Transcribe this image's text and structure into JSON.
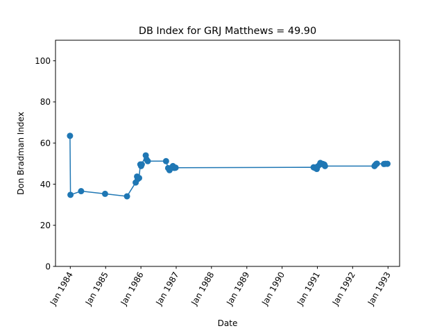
{
  "chart_data": {
    "type": "line",
    "title": "DB Index for GRJ Matthews = 49.90",
    "xlabel": "Date",
    "ylabel": "Don Bradman Index",
    "xlim": [
      "1983-08-01",
      "1993-05-01"
    ],
    "ylim": [
      0,
      110
    ],
    "xticks": [
      {
        "date": "1984-01-01",
        "label": "Jan 1984"
      },
      {
        "date": "1985-01-01",
        "label": "Jan 1985"
      },
      {
        "date": "1986-01-01",
        "label": "Jan 1986"
      },
      {
        "date": "1987-01-01",
        "label": "Jan 1987"
      },
      {
        "date": "1988-01-01",
        "label": "Jan 1988"
      },
      {
        "date": "1989-01-01",
        "label": "Jan 1989"
      },
      {
        "date": "1990-01-01",
        "label": "Jan 1990"
      },
      {
        "date": "1991-01-01",
        "label": "Jan 1991"
      },
      {
        "date": "1992-01-01",
        "label": "Jan 1992"
      },
      {
        "date": "1993-01-01",
        "label": "Jan 1993"
      }
    ],
    "yticks": [
      0,
      20,
      40,
      60,
      80,
      100
    ],
    "grid": false,
    "series": [
      {
        "color": "#1f77b4",
        "marker": "circle",
        "points": [
          {
            "x": "1983-12-29",
            "y": 63.5
          },
          {
            "x": "1984-01-03",
            "y": 34.8
          },
          {
            "x": "1984-04-22",
            "y": 36.6
          },
          {
            "x": "1984-12-26",
            "y": 35.3
          },
          {
            "x": "1985-08-10",
            "y": 34.1
          },
          {
            "x": "1985-11-08",
            "y": 40.8
          },
          {
            "x": "1985-11-22",
            "y": 43.7
          },
          {
            "x": "1985-11-29",
            "y": 42.5
          },
          {
            "x": "1985-12-13",
            "y": 43.0
          },
          {
            "x": "1985-12-26",
            "y": 49.6
          },
          {
            "x": "1986-01-03",
            "y": 48.8
          },
          {
            "x": "1986-01-10",
            "y": 49.6
          },
          {
            "x": "1986-02-20",
            "y": 54.0
          },
          {
            "x": "1986-03-01",
            "y": 52.0
          },
          {
            "x": "1986-03-13",
            "y": 51.2
          },
          {
            "x": "1986-09-18",
            "y": 51.2
          },
          {
            "x": "1986-10-10",
            "y": 47.8
          },
          {
            "x": "1986-10-24",
            "y": 46.8
          },
          {
            "x": "1986-11-14",
            "y": 48.0
          },
          {
            "x": "1986-11-28",
            "y": 48.8
          },
          {
            "x": "1986-12-12",
            "y": 47.9
          },
          {
            "x": "1986-12-26",
            "y": 48.0
          },
          {
            "x": "1990-11-23",
            "y": 48.2
          },
          {
            "x": "1990-12-07",
            "y": 47.9
          },
          {
            "x": "1990-12-26",
            "y": 47.4
          },
          {
            "x": "1991-01-04",
            "y": 48.6
          },
          {
            "x": "1991-01-25",
            "y": 49.5
          },
          {
            "x": "1991-02-01",
            "y": 50.3
          },
          {
            "x": "1991-02-14",
            "y": 49.9
          },
          {
            "x": "1991-02-28",
            "y": 49.8
          },
          {
            "x": "1991-03-14",
            "y": 49.5
          },
          {
            "x": "1991-03-21",
            "y": 48.8
          },
          {
            "x": "1992-08-14",
            "y": 48.8
          },
          {
            "x": "1992-08-22",
            "y": 49.3
          },
          {
            "x": "1992-09-01",
            "y": 49.8
          },
          {
            "x": "1992-09-08",
            "y": 50.0
          },
          {
            "x": "1992-11-20",
            "y": 49.8
          },
          {
            "x": "1992-12-05",
            "y": 49.9
          },
          {
            "x": "1992-12-26",
            "y": 49.9
          }
        ]
      }
    ]
  }
}
